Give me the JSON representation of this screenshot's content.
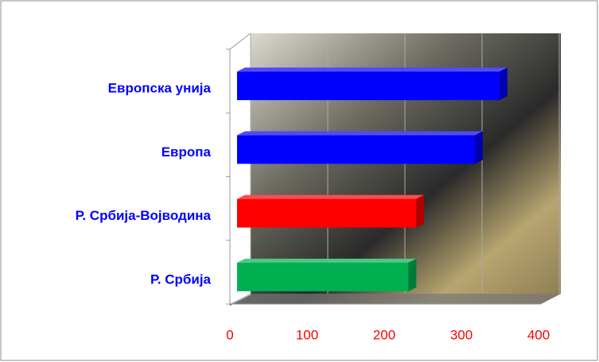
{
  "chart_data": {
    "type": "bar3d_horizontal",
    "categories": [
      "Европска унија",
      "Европа",
      "Р. Србија-Војводина",
      "Р. Србија"
    ],
    "values": [
      340,
      308,
      232,
      222
    ],
    "colors": [
      "#0000ff",
      "#0000ff",
      "#ff0000",
      "#00b050"
    ],
    "xlim": [
      0,
      400
    ],
    "xticks": [
      0,
      100,
      200,
      300,
      400
    ],
    "grid": true
  }
}
